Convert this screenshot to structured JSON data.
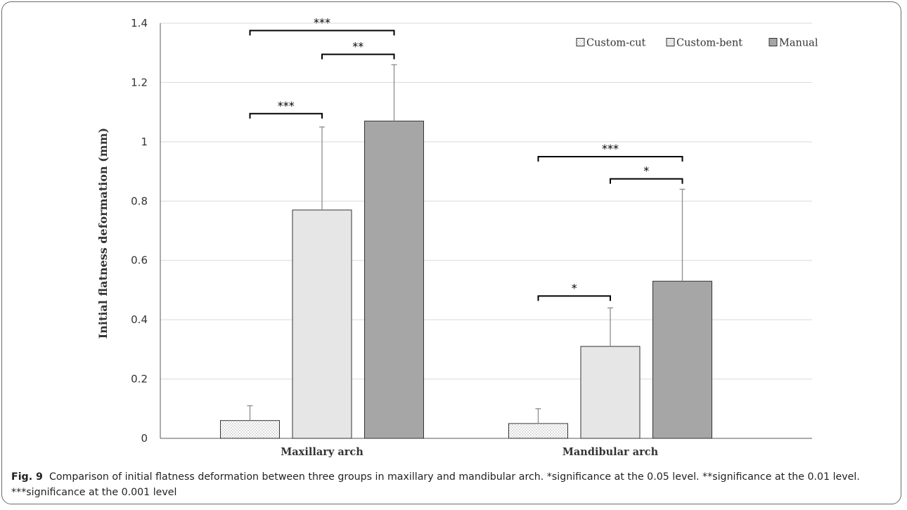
{
  "chart_data": {
    "type": "bar",
    "title": "",
    "xlabel": "",
    "ylabel": "Initial flatness deformation (mm)",
    "ylim": [
      0,
      1.4
    ],
    "yticks": [
      "0",
      "0.2",
      "0.4",
      "0.6",
      "0.8",
      "1",
      "1.2",
      "1.4"
    ],
    "grid": true,
    "legend_position": "top-right",
    "categories": [
      "Maxillary arch",
      "Mandibular arch"
    ],
    "series": [
      {
        "name": "Custom-cut",
        "values": [
          0.06,
          0.05
        ],
        "error": [
          0.05,
          0.05
        ],
        "fill": "dotted",
        "color": "#ffffff"
      },
      {
        "name": "Custom-bent",
        "values": [
          0.77,
          0.31
        ],
        "error": [
          0.28,
          0.13
        ],
        "fill": "solid",
        "color": "#e6e6e6"
      },
      {
        "name": "Manual",
        "values": [
          1.07,
          0.53
        ],
        "error": [
          0.19,
          0.31
        ],
        "fill": "solid",
        "color": "#a6a6a6"
      }
    ],
    "annotations": [
      {
        "category": 0,
        "from": 0,
        "to": 1,
        "y": 1.095,
        "label": "***"
      },
      {
        "category": 0,
        "from": 1,
        "to": 2,
        "y": 1.295,
        "label": "**"
      },
      {
        "category": 0,
        "from": 0,
        "to": 2,
        "y": 1.375,
        "label": "***"
      },
      {
        "category": 1,
        "from": 0,
        "to": 1,
        "y": 0.48,
        "label": "*"
      },
      {
        "category": 1,
        "from": 1,
        "to": 2,
        "y": 0.875,
        "label": "*"
      },
      {
        "category": 1,
        "from": 0,
        "to": 2,
        "y": 0.95,
        "label": "***"
      }
    ]
  },
  "caption": {
    "fig_label": "Fig. 9",
    "text": "Comparison of initial flatness deformation between three groups in maxillary and mandibular arch. *significance at the 0.05 level. **significance at the 0.01 level. ***significance at the 0.001 level"
  },
  "colors": {
    "axis": "#595959",
    "grid": "#d9d9d9",
    "bar_stroke": "#333333",
    "error_bar": "#8c8c8c",
    "text": "#333333"
  }
}
